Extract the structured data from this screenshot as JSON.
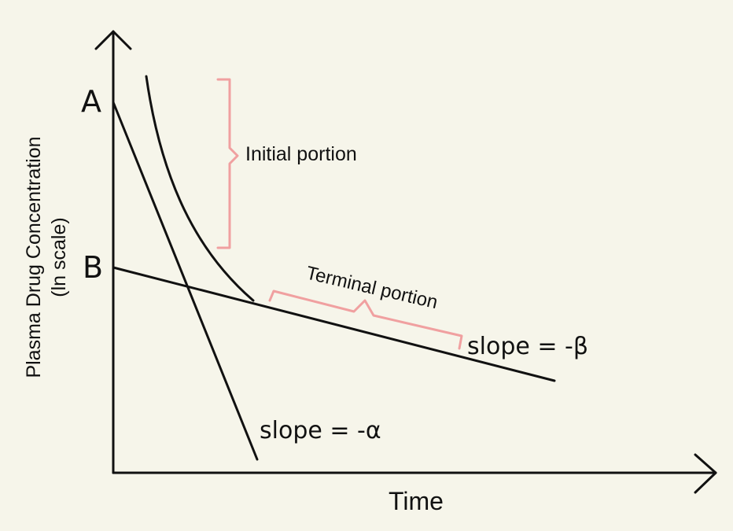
{
  "diagram": {
    "y_axis_label_line1": "Plasma Drug Concentration",
    "y_axis_label_line2": "(ln scale)",
    "x_axis_label": "Time",
    "intercept_a": "A",
    "intercept_b": "B",
    "initial_portion_label": "Initial portion",
    "terminal_portion_label": "Terminal portion",
    "slope_beta_label": "slope = -β",
    "slope_alpha_label": "slope = -α",
    "colors": {
      "ink": "#111111",
      "bracket": "#f0a0a0",
      "background": "#f6f5ea"
    }
  }
}
